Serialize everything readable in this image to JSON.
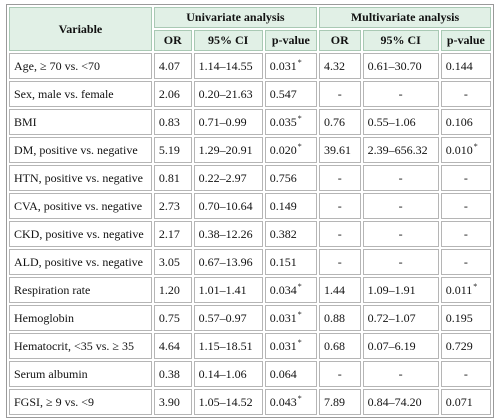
{
  "table": {
    "header": {
      "variable": "Variable",
      "groups": [
        "Univariate analysis",
        "Multivariate analysis"
      ],
      "columns": [
        "OR",
        "95% CI",
        "p-value",
        "OR",
        "95% CI",
        "p-value"
      ]
    },
    "rows": [
      [
        "Age, ≥ 70 vs. <70",
        "4.07",
        "1.14–14.55",
        {
          "text": "0.031",
          "sup": "*"
        },
        "4.32",
        "0.61–30.70",
        "0.144"
      ],
      [
        "Sex, male vs. female",
        "2.06",
        "0.20–21.63",
        "0.547",
        "-",
        "-",
        "-"
      ],
      [
        "BMI",
        "0.83",
        "0.71–0.99",
        {
          "text": "0.035",
          "sup": "*"
        },
        "0.76",
        "0.55–1.06",
        "0.106"
      ],
      [
        "DM, positive vs. negative",
        "5.19",
        "1.29–20.91",
        {
          "text": "0.020",
          "sup": "*"
        },
        "39.61",
        "2.39–656.32",
        {
          "text": "0.010",
          "sup": "*"
        }
      ],
      [
        "HTN, positive vs. negative",
        "0.81",
        "0.22–2.97",
        "0.756",
        "-",
        "-",
        "-"
      ],
      [
        "CVA, positive vs. negative",
        "2.73",
        "0.70–10.64",
        "0.149",
        "-",
        "-",
        "-"
      ],
      [
        "CKD, positive vs. negative",
        "2.17",
        "0.38–12.26",
        "0.382",
        "-",
        "-",
        "-"
      ],
      [
        "ALD, positive vs. negative",
        "3.05",
        "0.67–13.96",
        "0.151",
        "-",
        "-",
        "-"
      ],
      [
        "Respiration rate",
        "1.20",
        "1.01–1.41",
        {
          "text": "0.034",
          "sup": "*"
        },
        "1.44",
        "1.09–1.91",
        {
          "text": "0.011",
          "sup": "*"
        }
      ],
      [
        "Hemoglobin",
        "0.75",
        "0.57–0.97",
        {
          "text": "0.031",
          "sup": "*"
        },
        "0.88",
        "0.72–1.07",
        "0.195"
      ],
      [
        "Hematocrit, <35 vs. ≥ 35",
        "4.64",
        "1.15–18.51",
        {
          "text": "0.031",
          "sup": "*"
        },
        "0.68",
        "0.07–6.19",
        "0.729"
      ],
      [
        "Serum albumin",
        "0.38",
        "0.14–1.06",
        "0.064",
        "-",
        "-",
        "-"
      ],
      [
        "FGSI, ≥ 9 vs. <9",
        "3.90",
        "1.05–14.52",
        {
          "text": "0.043",
          "sup": "*"
        },
        "7.89",
        "0.84–74.20",
        "0.071"
      ]
    ]
  }
}
